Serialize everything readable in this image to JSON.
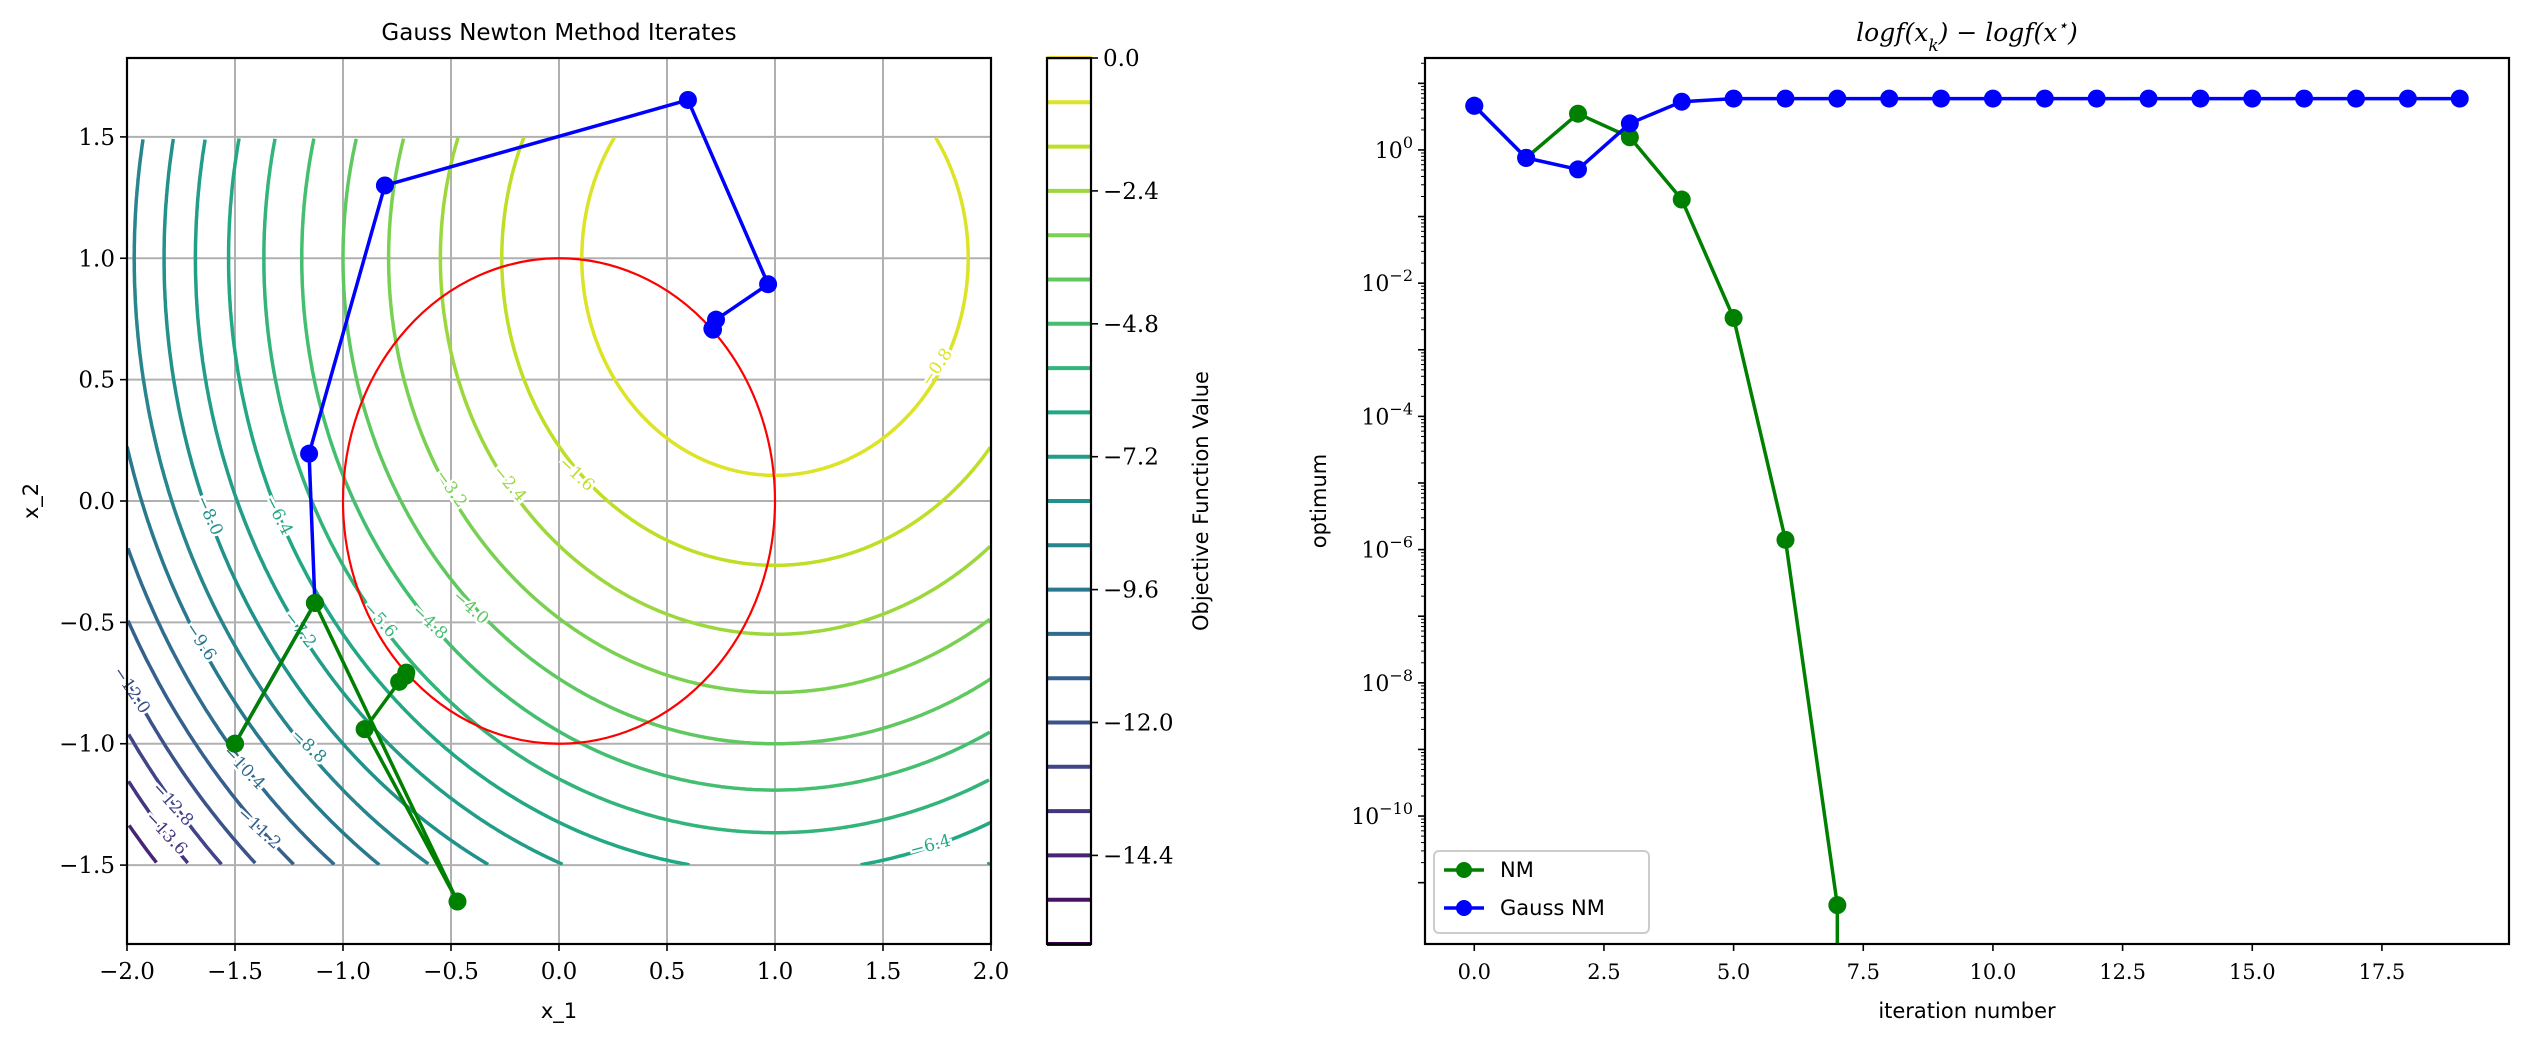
{
  "chart_data": [
    {
      "type": "contour",
      "title": "Gauss Newton Method Iterates",
      "xlabel": "x_1",
      "ylabel": "x_2",
      "xlim": [
        -2,
        2
      ],
      "ylim": [
        -1.825,
        1.825
      ],
      "xticks": [
        "−2.0",
        "−1.5",
        "−1.0",
        "−0.5",
        "0.0",
        "0.5",
        "1.0",
        "1.5",
        "2.0"
      ],
      "yticks": [
        "−1.5",
        "−1.0",
        "−0.5",
        "0.0",
        "0.5",
        "1.0",
        "1.5"
      ],
      "grid": true,
      "contour_function": "-((x1-1)^2 + (x2-1)^2)",
      "contour_center": [
        1,
        1
      ],
      "contour_domain": {
        "x": [
          -2,
          2
        ],
        "y": [
          -1.5,
          1.5
        ]
      },
      "contour_levels": [
        -15.2,
        -14.4,
        -13.6,
        -12.8,
        -12.0,
        -11.2,
        -10.4,
        -9.6,
        -8.8,
        -8.0,
        -7.2,
        -6.4,
        -5.6,
        -4.8,
        -4.0,
        -3.2,
        -2.4,
        -1.6,
        -0.8
      ],
      "contour_labels": [
        {
          "text": "−0.8",
          "level": -0.8,
          "x": 1.75,
          "y": 0.55
        },
        {
          "text": "−1.6",
          "level": -1.6,
          "x": 0.08,
          "y": 0.11
        },
        {
          "text": "−2.4",
          "level": -2.4,
          "x": -0.23,
          "y": 0.07
        },
        {
          "text": "−3.2",
          "level": -3.2,
          "x": -0.5,
          "y": 0.05
        },
        {
          "text": "−4.0",
          "level": -4.0,
          "x": -0.41,
          "y": -0.44
        },
        {
          "text": "−4.8",
          "level": -4.8,
          "x": -0.6,
          "y": -0.5
        },
        {
          "text": "−5.6",
          "level": -5.6,
          "x": -0.83,
          "y": -0.49
        },
        {
          "text": "−6.4",
          "level": -6.4,
          "x": -1.3,
          "y": -0.06
        },
        {
          "text": "−6.4",
          "level": -6.4,
          "x": 1.72,
          "y": -1.42
        },
        {
          "text": "−7.2",
          "level": -7.2,
          "x": -1.2,
          "y": -0.53
        },
        {
          "text": "−8.0",
          "level": -8.0,
          "x": -1.62,
          "y": -0.06
        },
        {
          "text": "−8.8",
          "level": -8.8,
          "x": -1.16,
          "y": -1.01
        },
        {
          "text": "−9.6",
          "level": -9.6,
          "x": -1.66,
          "y": -0.58
        },
        {
          "text": "−10.4",
          "level": -10.4,
          "x": -1.46,
          "y": -1.1
        },
        {
          "text": "−11.2",
          "level": -11.2,
          "x": -1.39,
          "y": -1.35
        },
        {
          "text": "−12.0",
          "level": -12.0,
          "x": -1.98,
          "y": -0.78
        },
        {
          "text": "−12.8",
          "level": -12.8,
          "x": -1.79,
          "y": -1.25
        },
        {
          "text": "−13.6",
          "level": -13.6,
          "x": -1.82,
          "y": -1.37
        }
      ],
      "constraint_circle": {
        "center": [
          0,
          0
        ],
        "radius": 1,
        "color": "#ff0000"
      },
      "series": [
        {
          "name": "Gauss NM",
          "color": "#0000ff",
          "x": [
            -1.5,
            -1.13,
            -1.157,
            -0.806,
            0.597,
            0.968,
            0.727,
            0.713,
            0.71
          ],
          "y": [
            -1.0,
            -0.42,
            0.195,
            1.3,
            1.652,
            0.893,
            0.747,
            0.706,
            0.71
          ]
        },
        {
          "name": "NM",
          "color": "#008000",
          "x": [
            -1.5,
            -1.13,
            -0.47,
            -0.9,
            -0.74,
            -0.71,
            -0.707
          ],
          "y": [
            -1.0,
            -0.42,
            -1.65,
            -0.94,
            -0.745,
            -0.72,
            -0.707
          ]
        }
      ],
      "colorbar": {
        "label": "Objective Function Value",
        "range": [
          -16,
          0
        ],
        "step": 0.8,
        "ticks": [
          "0.0",
          "−2.4",
          "−4.8",
          "−7.2",
          "−9.6",
          "−12.0",
          "−14.4"
        ],
        "colormap": [
          "#440154",
          "#482475",
          "#414487",
          "#355f8d",
          "#2a788e",
          "#21918c",
          "#22a884",
          "#44bf70",
          "#7ad151",
          "#bddf26",
          "#fde725"
        ]
      }
    },
    {
      "type": "line",
      "title_parts": [
        "logf(x",
        "k",
        ") − logf(x",
        "⋆",
        ")"
      ],
      "xlabel": "iteration number",
      "ylabel": "optimum",
      "yscale": "log",
      "xlim": [
        -0.95,
        19.95
      ],
      "ylim": [
        1.2e-12,
        24
      ],
      "xticks": [
        "0.0",
        "2.5",
        "5.0",
        "7.5",
        "10.0",
        "12.5",
        "15.0",
        "17.5"
      ],
      "ytick_base": "10",
      "yticks": [
        "0",
        "−2",
        "−4",
        "−6",
        "−8",
        "−10"
      ],
      "grid": false,
      "series": [
        {
          "name": "NM",
          "color": "#008000",
          "x": [
            0,
            1,
            2,
            3,
            4,
            5,
            6,
            7
          ],
          "values": [
            4.6,
            0.76,
            3.5,
            1.55,
            0.18,
            0.003,
            1.4e-06,
            4.6e-12
          ],
          "note": "drops to zero after iteration 7"
        },
        {
          "name": "Gauss NM",
          "color": "#0000ff",
          "x": [
            0,
            1,
            2,
            3,
            4,
            5,
            6,
            7,
            8,
            9,
            10,
            11,
            12,
            13,
            14,
            15,
            16,
            17,
            18,
            19
          ],
          "values": [
            4.6,
            0.76,
            0.51,
            2.5,
            5.3,
            5.9,
            5.9,
            5.9,
            5.9,
            5.9,
            5.9,
            5.9,
            5.9,
            5.9,
            5.9,
            5.9,
            5.9,
            5.9,
            5.9,
            5.9
          ]
        }
      ],
      "legend": {
        "placement": "lower-left",
        "entries": [
          "NM",
          "Gauss NM"
        ]
      }
    }
  ]
}
